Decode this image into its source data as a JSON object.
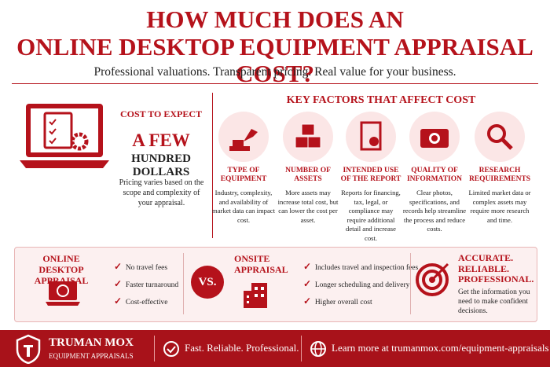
{
  "header": {
    "title_line1": "HOW MUCH DOES AN",
    "title_line2": "ONLINE DESKTOP EQUIPMENT APPRAISAL COST?",
    "subtitle": "Professional valuations. Transparent pricing. Real value for your business."
  },
  "cost": {
    "heading": "COST TO EXPECT",
    "amount_line1": "A FEW",
    "amount_line2": "HUNDRED DOLLARS",
    "note": "Pricing varies based on the scope and complexity of your appraisal."
  },
  "factors": {
    "heading": "KEY FACTORS THAT AFFECT COST",
    "items": [
      {
        "title": "TYPE OF EQUIPMENT",
        "text": "Industry, complexity, and availability of market data can impact cost."
      },
      {
        "title": "NUMBER OF ASSETS",
        "text": "More assets may increase total cost, but can lower the cost per asset."
      },
      {
        "title": "INTENDED USE OF THE REPORT",
        "text": "Reports for financing, tax, legal, or compliance may require additional detail and increase cost."
      },
      {
        "title": "QUALITY OF INFORMATION",
        "text": "Clear photos, specifications, and records help streamline the process and reduce costs."
      },
      {
        "title": "RESEARCH REQUIREMENTS",
        "text": "Limited market data or complex assets may require more research and time."
      }
    ]
  },
  "comparison": {
    "online": {
      "title": "ONLINE DESKTOP APPRAISAL",
      "points": [
        "No travel fees",
        "Faster turnaround",
        "Cost-effective"
      ]
    },
    "vs": "VS.",
    "onsite": {
      "title": "ONSITE APPRAISAL",
      "points": [
        "Includes travel and inspection fees",
        "Longer scheduling and delivery",
        "Higher overall cost"
      ]
    },
    "promise": {
      "title": "ACCURATE. RELIABLE. PROFESSIONAL.",
      "text": "Get the information you need to make confident decisions."
    }
  },
  "footer": {
    "brand": "TRUMAN MOX",
    "brand_sub": "EQUIPMENT APPRAISALS",
    "tagline": "Fast. Reliable. Professional.",
    "link": "Learn more at trumanmox.com/equipment-appraisals"
  }
}
